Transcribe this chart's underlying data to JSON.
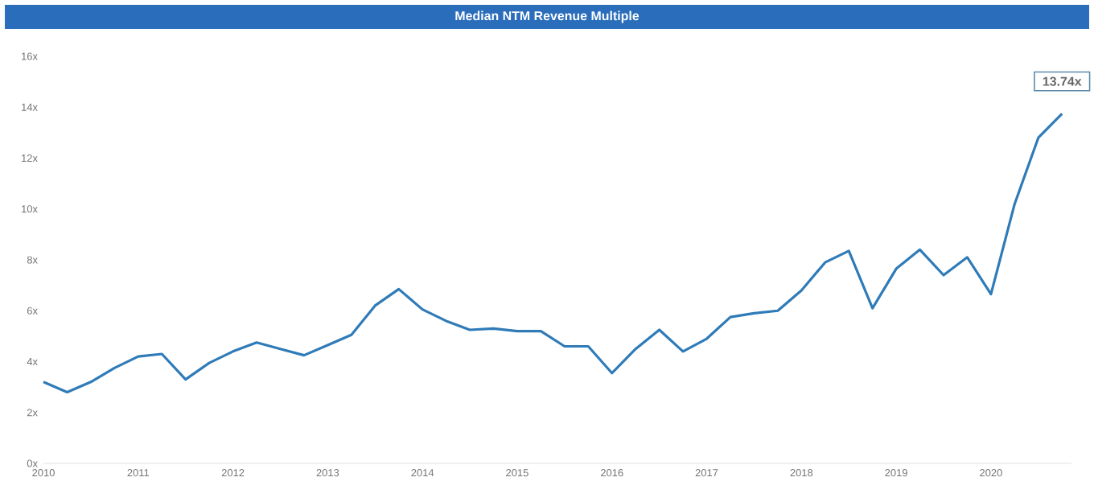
{
  "chart_data": {
    "type": "line",
    "title": "Median NTM Revenue Multiple",
    "x": [
      2010,
      2010.25,
      2010.5,
      2010.75,
      2011,
      2011.25,
      2011.5,
      2011.75,
      2012,
      2012.25,
      2012.5,
      2012.75,
      2013,
      2013.25,
      2013.5,
      2013.75,
      2014,
      2014.25,
      2014.5,
      2014.75,
      2015,
      2015.25,
      2015.5,
      2015.75,
      2016,
      2016.25,
      2016.5,
      2016.75,
      2017,
      2017.25,
      2017.5,
      2017.75,
      2018,
      2018.25,
      2018.5,
      2018.75,
      2019,
      2019.25,
      2019.5,
      2019.75,
      2020,
      2020.25,
      2020.5,
      2020.75
    ],
    "series": [
      {
        "color": "#2f7bb8",
        "values": [
          3.2,
          2.8,
          3.2,
          3.75,
          4.2,
          4.3,
          3.3,
          3.95,
          4.4,
          4.75,
          4.5,
          4.25,
          4.65,
          5.05,
          6.2,
          6.85,
          6.05,
          5.6,
          5.25,
          5.3,
          5.2,
          5.2,
          4.6,
          4.6,
          3.55,
          4.5,
          5.25,
          4.4,
          4.9,
          5.75,
          5.9,
          6.0,
          6.8,
          7.9,
          8.35,
          6.1,
          7.65,
          8.4,
          7.4,
          8.1,
          6.65,
          10.2,
          12.8,
          13.74
        ]
      }
    ],
    "xlim": [
      2010,
      2020.85
    ],
    "xticks": [
      2010,
      2011,
      2012,
      2013,
      2014,
      2015,
      2016,
      2017,
      2018,
      2019,
      2020
    ],
    "ylim": [
      0,
      16
    ],
    "yticks": [
      {
        "value": 0,
        "label": "0x"
      },
      {
        "value": 2,
        "label": "2x"
      },
      {
        "value": 4,
        "label": "4x"
      },
      {
        "value": 6,
        "label": "6x"
      },
      {
        "value": 8,
        "label": "8x"
      },
      {
        "value": 10,
        "label": "10x"
      },
      {
        "value": 12,
        "label": "12x"
      },
      {
        "value": 14,
        "label": "14x"
      },
      {
        "value": 16,
        "label": "16x"
      }
    ],
    "annotations": [
      {
        "text": "13.74x",
        "x": 2020.75,
        "y": 13.74
      }
    ],
    "grid": false,
    "marker": "none",
    "line_style": "solid"
  }
}
